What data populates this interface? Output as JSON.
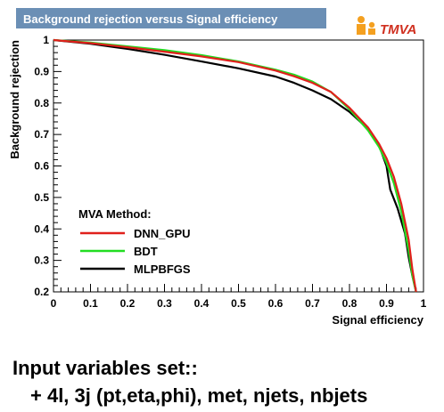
{
  "chart_data": {
    "type": "line",
    "title": "Background rejection versus Signal efficiency",
    "xlabel": "Signal efficiency",
    "ylabel": "Background rejection",
    "xlim": [
      0,
      1
    ],
    "ylim": [
      0.2,
      1
    ],
    "x_ticks": [
      "0",
      "0.1",
      "0.2",
      "0.3",
      "0.4",
      "0.5",
      "0.6",
      "0.7",
      "0.8",
      "0.9",
      "1"
    ],
    "y_ticks": [
      "0.2",
      "0.3",
      "0.4",
      "0.5",
      "0.6",
      "0.7",
      "0.8",
      "0.9",
      "1"
    ],
    "grid": false,
    "legend_title": "MVA Method:",
    "legend_placement": "bottom-left",
    "series": [
      {
        "name": "DNN_GPU",
        "color": "#e0201b",
        "x": [
          0,
          0.1,
          0.2,
          0.3,
          0.4,
          0.5,
          0.6,
          0.65,
          0.7,
          0.75,
          0.8,
          0.85,
          0.88,
          0.9,
          0.92,
          0.94,
          0.96,
          0.97,
          0.98
        ],
        "y": [
          1,
          0.99,
          0.977,
          0.963,
          0.948,
          0.93,
          0.903,
          0.885,
          0.864,
          0.835,
          0.785,
          0.722,
          0.67,
          0.625,
          0.565,
          0.48,
          0.365,
          0.27,
          0.2
        ]
      },
      {
        "name": "BDT",
        "color": "#22dd22",
        "x": [
          0,
          0.1,
          0.2,
          0.3,
          0.4,
          0.5,
          0.6,
          0.65,
          0.7,
          0.75,
          0.8,
          0.85,
          0.88,
          0.9,
          0.92,
          0.94,
          0.96,
          0.97,
          0.98
        ],
        "y": [
          1,
          0.992,
          0.98,
          0.968,
          0.952,
          0.932,
          0.906,
          0.89,
          0.868,
          0.835,
          0.78,
          0.713,
          0.66,
          0.61,
          0.545,
          0.455,
          0.33,
          0.25,
          0.2
        ]
      },
      {
        "name": "MLPBFGS",
        "color": "#000000",
        "x": [
          0,
          0.1,
          0.2,
          0.3,
          0.4,
          0.5,
          0.6,
          0.65,
          0.7,
          0.75,
          0.8,
          0.85,
          0.88,
          0.9,
          0.91,
          0.93,
          0.95,
          0.96,
          0.97,
          0.98
        ],
        "y": [
          1,
          0.988,
          0.972,
          0.953,
          0.932,
          0.91,
          0.884,
          0.864,
          0.84,
          0.812,
          0.772,
          0.718,
          0.665,
          0.6,
          0.525,
          0.465,
          0.385,
          0.31,
          0.25,
          0.2
        ]
      }
    ]
  },
  "logo": {
    "text": "TMVA"
  },
  "caption": {
    "line1": "Input variables set::",
    "line2": "+ 4l, 3j (pt,eta,phi), met, njets, nbjets"
  }
}
